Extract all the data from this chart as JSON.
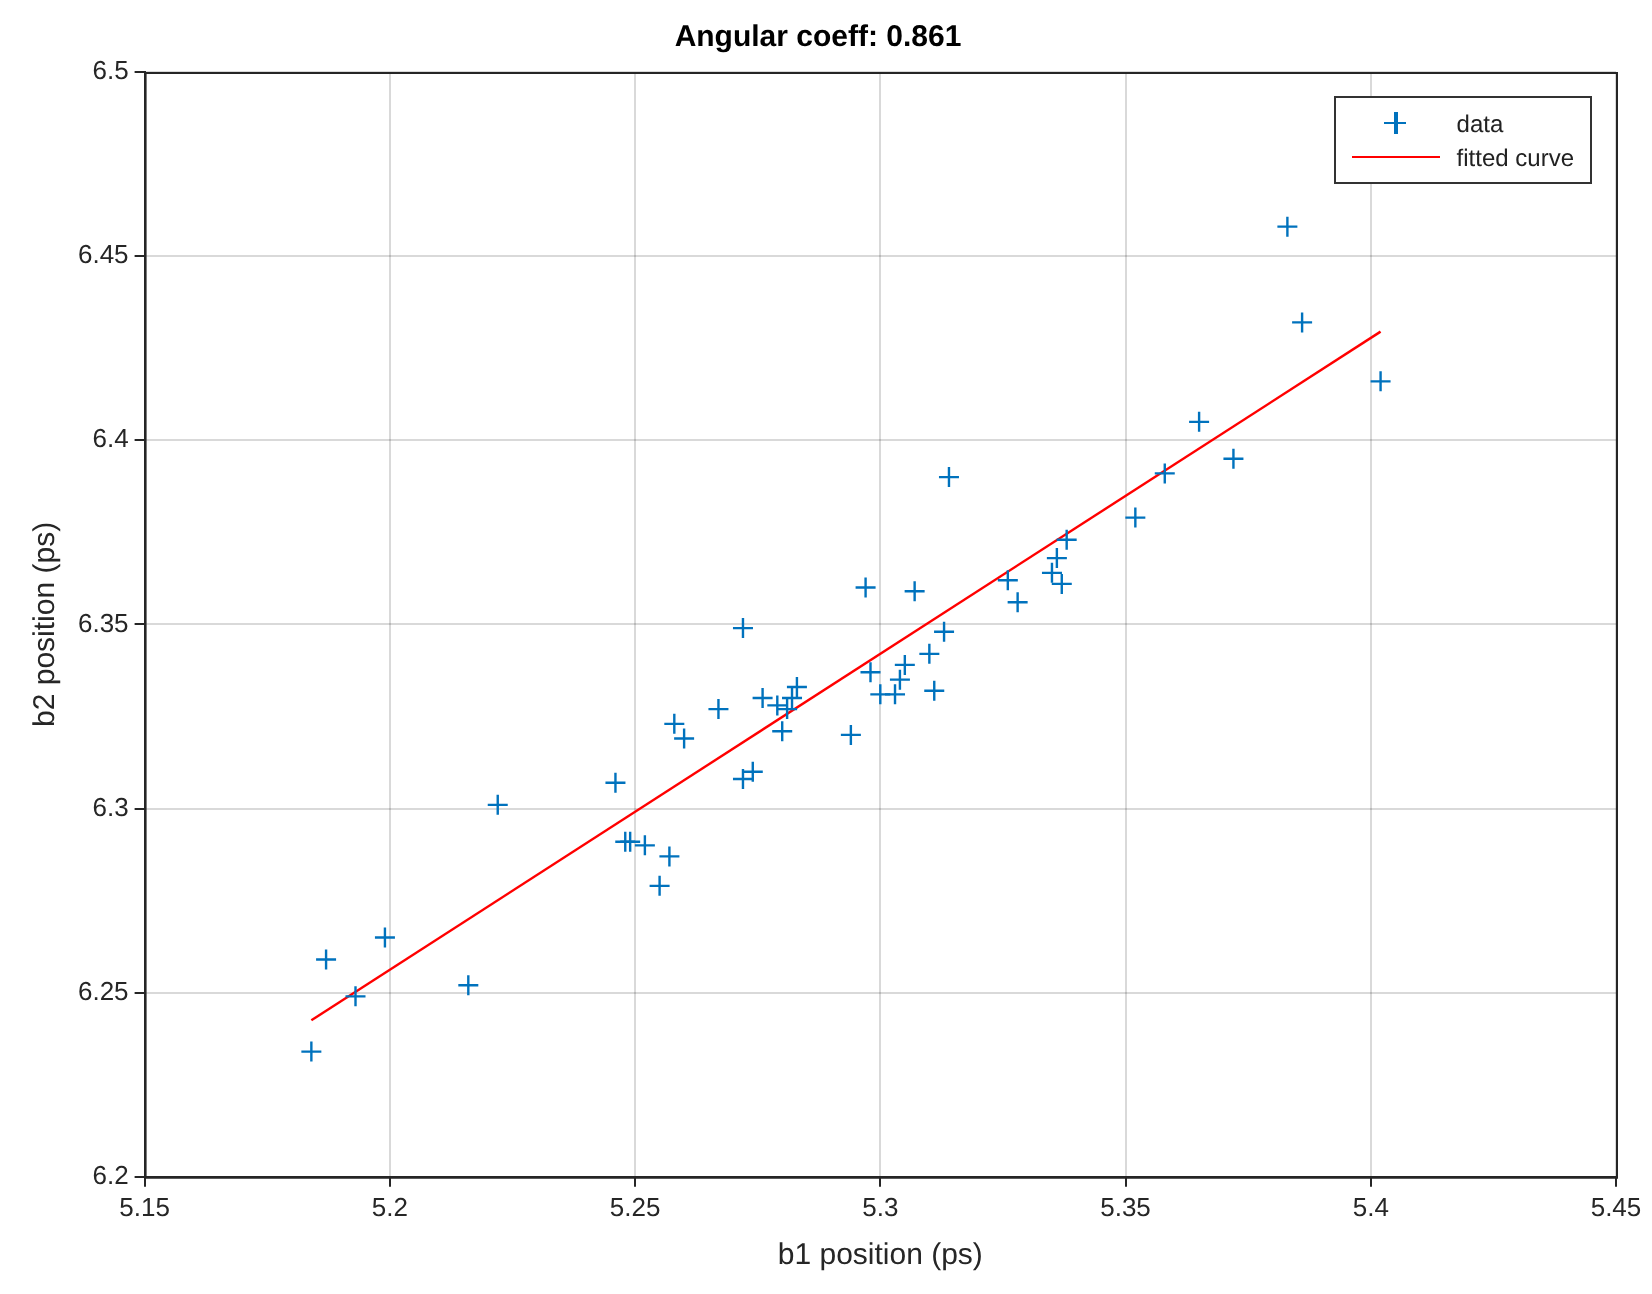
{
  "chart_data": {
    "type": "scatter",
    "title": "Angular coeff: 0.861",
    "xlabel": "b1 position (ps)",
    "ylabel": "b2 position (ps)",
    "xlim": [
      5.15,
      5.45
    ],
    "xticks": [
      5.15,
      5.2,
      5.25,
      5.3,
      5.35,
      5.4,
      5.45
    ],
    "ylim": [
      6.2,
      6.5
    ],
    "yticks": [
      6.2,
      6.25,
      6.3,
      6.35,
      6.4,
      6.45,
      6.5
    ],
    "grid": true,
    "legend": "top right",
    "marker": "cross",
    "series": [
      {
        "name": "data",
        "color": "#0072bd",
        "x": [
          5.184,
          5.187,
          5.193,
          5.199,
          5.216,
          5.222,
          5.246,
          5.248,
          5.249,
          5.252,
          5.255,
          5.257,
          5.258,
          5.26,
          5.267,
          5.272,
          5.272,
          5.274,
          5.276,
          5.279,
          5.28,
          5.281,
          5.282,
          5.283,
          5.294,
          5.297,
          5.298,
          5.3,
          5.303,
          5.304,
          5.305,
          5.307,
          5.31,
          5.311,
          5.313,
          5.314,
          5.326,
          5.328,
          5.335,
          5.336,
          5.337,
          5.338,
          5.352,
          5.358,
          5.365,
          5.372,
          5.383,
          5.386,
          5.402
        ],
        "values": [
          6.234,
          6.259,
          6.249,
          6.265,
          6.252,
          6.301,
          6.307,
          6.291,
          6.291,
          6.29,
          6.279,
          6.287,
          6.323,
          6.319,
          6.327,
          6.308,
          6.349,
          6.31,
          6.33,
          6.328,
          6.321,
          6.327,
          6.33,
          6.333,
          6.32,
          6.36,
          6.337,
          6.331,
          6.331,
          6.335,
          6.339,
          6.359,
          6.342,
          6.332,
          6.348,
          6.39,
          6.362,
          6.356,
          6.364,
          6.368,
          6.361,
          6.373,
          6.379,
          6.391,
          6.405,
          6.395,
          6.458,
          6.432,
          6.416
        ]
      },
      {
        "name": "fitted curve",
        "type": "line",
        "color": "#ff0000",
        "marker": "none",
        "x": [
          5.184,
          5.402
        ],
        "values": [
          6.2425,
          6.4295
        ]
      }
    ]
  }
}
